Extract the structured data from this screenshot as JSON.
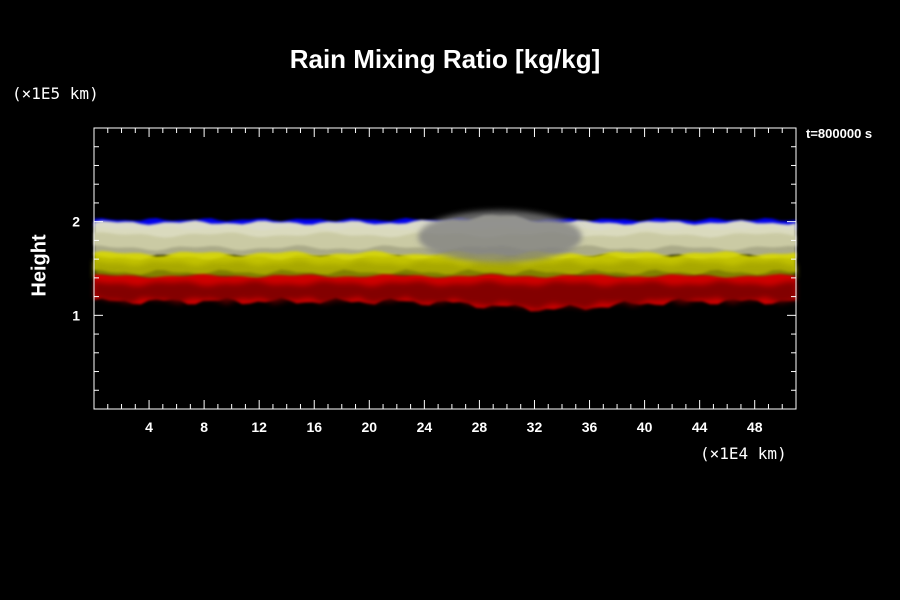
{
  "chart_data": {
    "type": "heatmap",
    "title": "Rain Mixing Ratio [kg/kg]",
    "ylabel": "Height",
    "yunit": "(×1E5 km)",
    "xunit": "(×1E4 km)",
    "time_label": "t=800000 s",
    "xlim": [
      0,
      51
    ],
    "ylim": [
      0,
      3
    ],
    "x_ticks": [
      4,
      8,
      12,
      16,
      20,
      24,
      28,
      32,
      36,
      40,
      44,
      48
    ],
    "x_tick_labels": [
      "4",
      "8",
      "12",
      "16",
      "20",
      "24",
      "28",
      "32",
      "36",
      "40",
      "44",
      "48"
    ],
    "y_ticks": [
      1,
      2
    ],
    "y_tick_labels": [
      "1",
      "2"
    ],
    "layer_colors": [
      "#0000ee",
      "#e6e6c8",
      "#c8c8a0",
      "#d8d800",
      "#a0a000",
      "#d00000",
      "#700000",
      "#808080"
    ]
  }
}
